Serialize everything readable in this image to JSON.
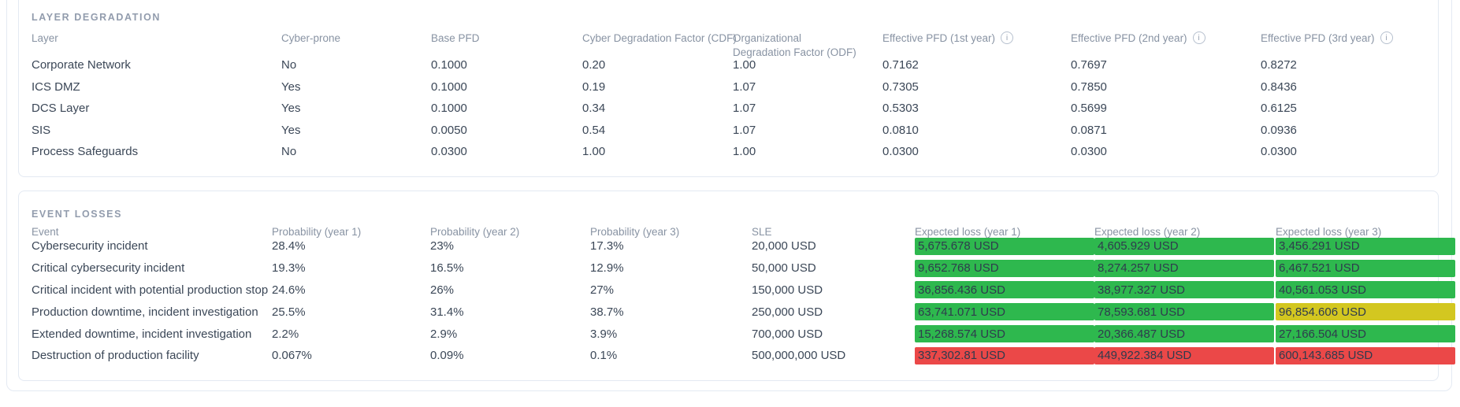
{
  "layer_table": {
    "title": "LAYER DEGRADATION",
    "columns": [
      "Layer",
      "Cyber-prone",
      "Base PFD",
      "Cyber Degradation Factor (CDF)",
      "Organizational Degradation Factor (ODF)",
      "Effective PFD (1st year)",
      "Effective PFD (2nd year)",
      "Effective PFD (3rd year)"
    ],
    "info_icon_columns": [
      5,
      6,
      7
    ],
    "rows": [
      [
        "Corporate Network",
        "No",
        "0.1000",
        "0.20",
        "1.00",
        "0.7162",
        "0.7697",
        "0.8272"
      ],
      [
        "ICS DMZ",
        "Yes",
        "0.1000",
        "0.19",
        "1.07",
        "0.7305",
        "0.7850",
        "0.8436"
      ],
      [
        "DCS Layer",
        "Yes",
        "0.1000",
        "0.34",
        "1.07",
        "0.5303",
        "0.5699",
        "0.6125"
      ],
      [
        "SIS",
        "Yes",
        "0.0050",
        "0.54",
        "1.07",
        "0.0810",
        "0.0871",
        "0.0936"
      ],
      [
        "Process Safeguards",
        "No",
        "0.0300",
        "1.00",
        "1.00",
        "0.0300",
        "0.0300",
        "0.0300"
      ]
    ]
  },
  "event_table": {
    "title": "EVENT LOSSES",
    "columns": [
      "Event",
      "Probability (year 1)",
      "Probability (year 2)",
      "Probability (year 3)",
      "SLE",
      "Expected loss (year 1)",
      "Expected loss (year 2)",
      "Expected loss (year 3)"
    ],
    "rows": [
      {
        "cells": [
          "Cybersecurity incident",
          "28.4%",
          "23%",
          "17.3%",
          "20,000 USD"
        ],
        "losses": [
          {
            "value": "5,675.678 USD",
            "status": "ok"
          },
          {
            "value": "4,605.929 USD",
            "status": "ok"
          },
          {
            "value": "3,456.291 USD",
            "status": "ok"
          }
        ]
      },
      {
        "cells": [
          "Critical cybersecurity incident",
          "19.3%",
          "16.5%",
          "12.9%",
          "50,000 USD"
        ],
        "losses": [
          {
            "value": "9,652.768 USD",
            "status": "ok"
          },
          {
            "value": "8,274.257 USD",
            "status": "ok"
          },
          {
            "value": "6,467.521 USD",
            "status": "ok"
          }
        ]
      },
      {
        "cells": [
          "Critical incident with potential production stop",
          "24.6%",
          "26%",
          "27%",
          "150,000 USD"
        ],
        "losses": [
          {
            "value": "36,856.436 USD",
            "status": "ok"
          },
          {
            "value": "38,977.327 USD",
            "status": "ok"
          },
          {
            "value": "40,561.053 USD",
            "status": "ok"
          }
        ]
      },
      {
        "cells": [
          "Production downtime, incident investigation",
          "25.5%",
          "31.4%",
          "38.7%",
          "250,000 USD"
        ],
        "losses": [
          {
            "value": "63,741.071 USD",
            "status": "ok"
          },
          {
            "value": "78,593.681 USD",
            "status": "ok"
          },
          {
            "value": "96,854.606 USD",
            "status": "warning"
          }
        ]
      },
      {
        "cells": [
          "Extended downtime, incident investigation",
          "2.2%",
          "2.9%",
          "3.9%",
          "700,000 USD"
        ],
        "losses": [
          {
            "value": "15,268.574 USD",
            "status": "ok"
          },
          {
            "value": "20,366.487 USD",
            "status": "ok"
          },
          {
            "value": "27,166.504 USD",
            "status": "ok"
          }
        ]
      },
      {
        "cells": [
          "Destruction of production facility",
          "0.067%",
          "0.09%",
          "0.1%",
          "500,000,000 USD"
        ],
        "losses": [
          {
            "value": "337,302.81 USD",
            "status": "danger"
          },
          {
            "value": "449,922.384 USD",
            "status": "danger"
          },
          {
            "value": "600,143.685 USD",
            "status": "danger"
          }
        ]
      }
    ]
  },
  "status_colors": {
    "ok": "#2eb84e",
    "warning": "#d3c720",
    "danger": "#eb4848"
  },
  "icons": {
    "info_glyph": "i"
  }
}
